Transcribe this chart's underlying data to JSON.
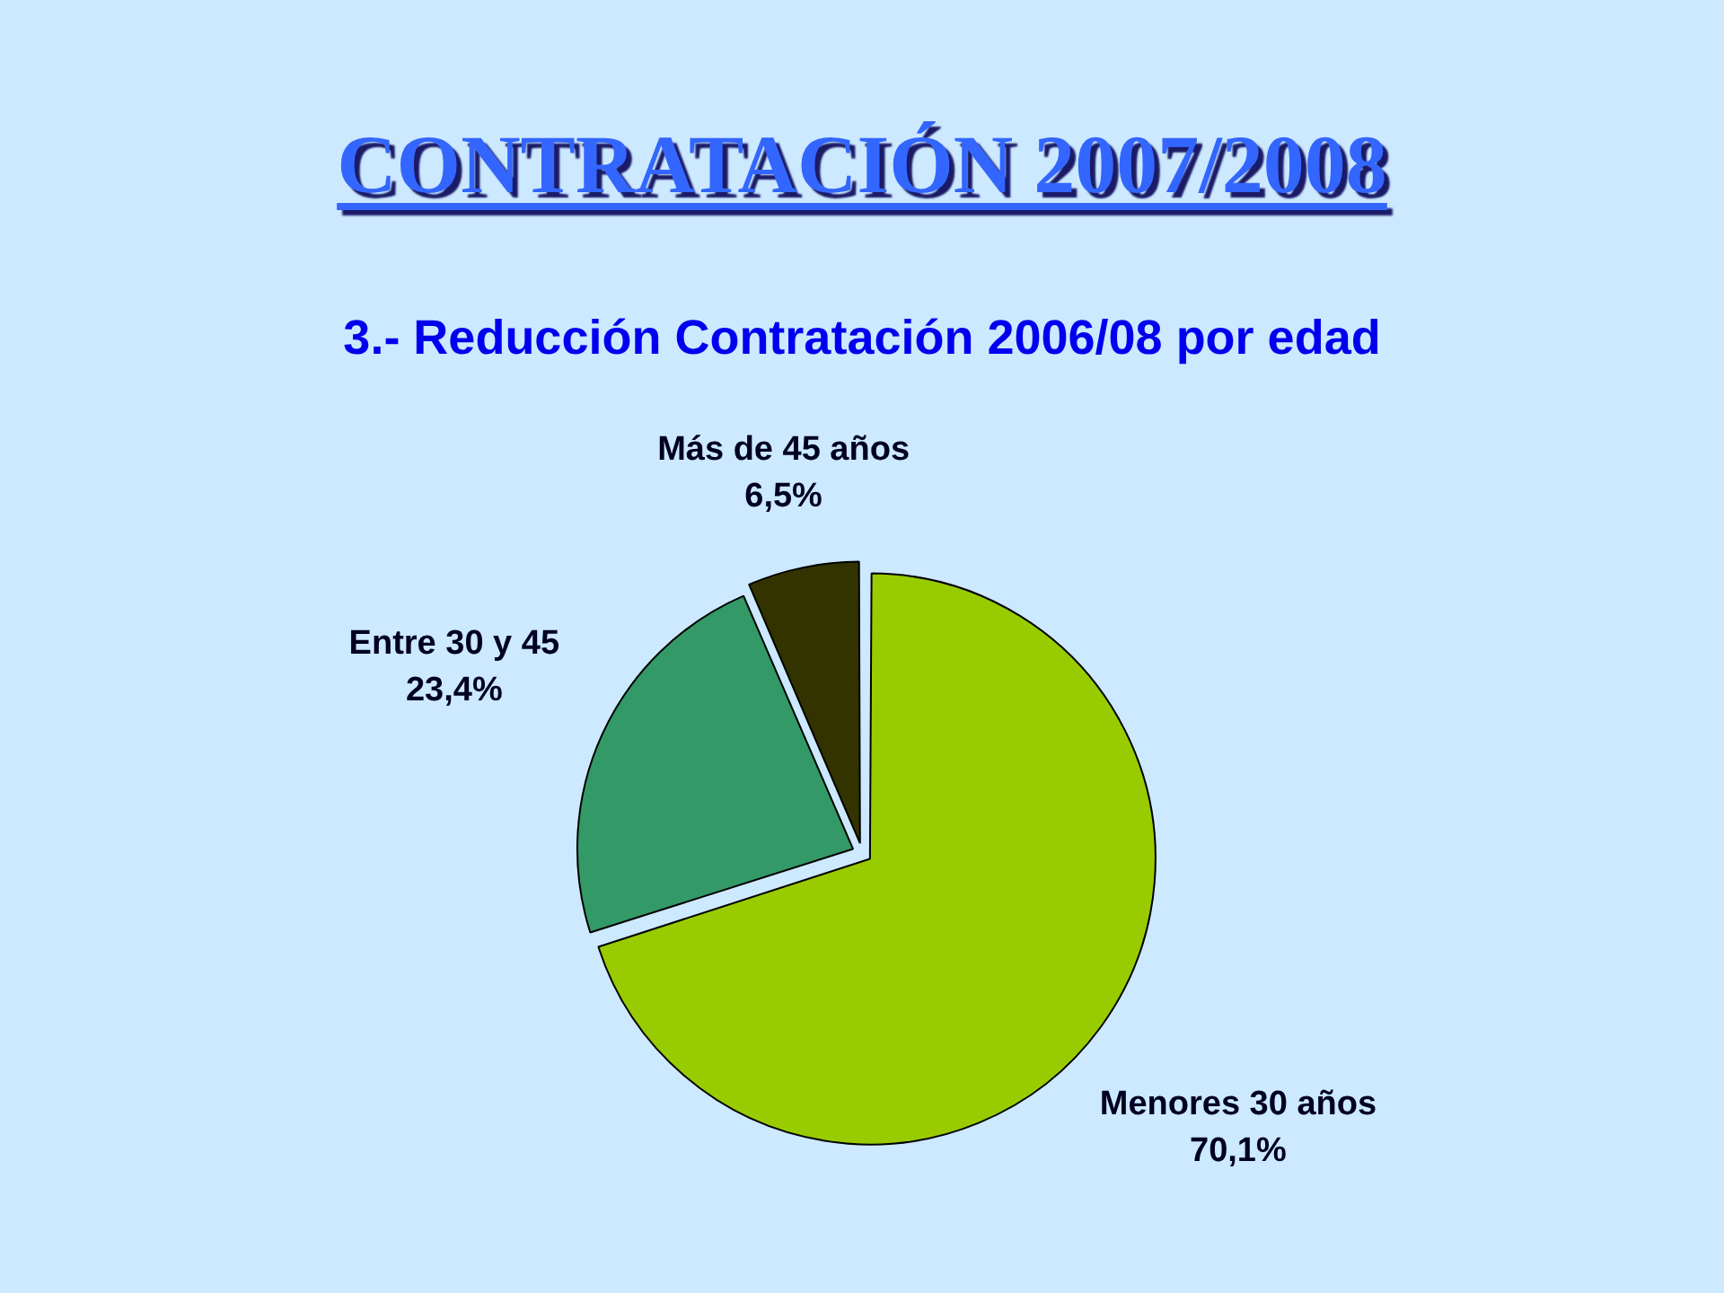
{
  "chart_data": {
    "type": "pie",
    "title": "CONTRATACIÓN 2007/2008",
    "subtitle": "3.- Reducción Contratación 2006/08 por edad",
    "categories": [
      "Menores 30 años",
      "Entre 30 y 45",
      "Más de 45 años"
    ],
    "values": [
      70.1,
      23.4,
      6.5
    ],
    "value_labels": [
      "70,1%",
      "23,4%",
      "6,5%"
    ],
    "colors": [
      "#99cc00",
      "#339966",
      "#333300"
    ]
  }
}
